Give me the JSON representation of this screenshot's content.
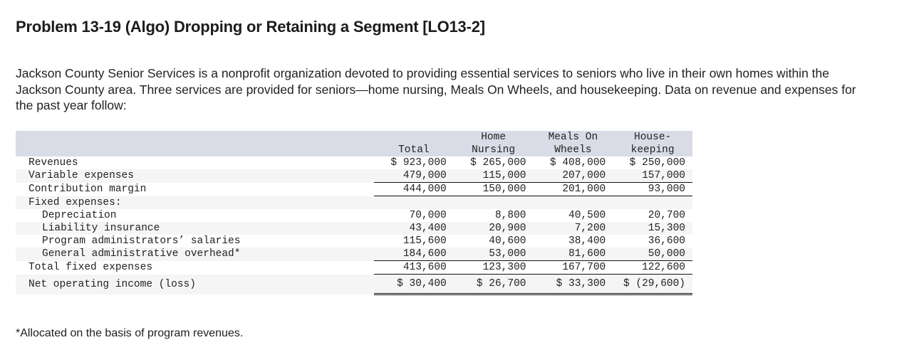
{
  "title": "Problem 13-19 (Algo) Dropping or Retaining a Segment [LO13-2]",
  "intro": "Jackson County Senior Services is a nonprofit organization devoted to providing essential services to seniors who live in their own homes within the Jackson County area. Three services are provided for seniors—home nursing, Meals On Wheels, and housekeeping. Data on revenue and expenses for the past year follow:",
  "table": {
    "headers": [
      {
        "line1": "",
        "line2": "Total"
      },
      {
        "line1": "Home",
        "line2": "Nursing"
      },
      {
        "line1": "Meals On",
        "line2": "Wheels"
      },
      {
        "line1": "House-",
        "line2": "keeping"
      }
    ],
    "rows": [
      {
        "label": "Revenues",
        "values": [
          "$ 923,000",
          "$ 265,000",
          "$ 408,000",
          "$ 250,000"
        ]
      },
      {
        "label": "Variable expenses",
        "values": [
          "479,000",
          "115,000",
          "207,000",
          "157,000"
        ]
      },
      {
        "label": "Contribution margin",
        "values": [
          "444,000",
          "150,000",
          "201,000",
          "93,000"
        ]
      },
      {
        "label": "Fixed expenses:",
        "values": [
          "",
          "",
          "",
          ""
        ]
      },
      {
        "label": "Depreciation",
        "values": [
          "70,000",
          "8,800",
          "40,500",
          "20,700"
        ]
      },
      {
        "label": "Liability insurance",
        "values": [
          "43,400",
          "20,900",
          "7,200",
          "15,300"
        ]
      },
      {
        "label": "Program administrators’ salaries",
        "values": [
          "115,600",
          "40,600",
          "38,400",
          "36,600"
        ]
      },
      {
        "label": "General administrative overhead*",
        "values": [
          "184,600",
          "53,000",
          "81,600",
          "50,000"
        ]
      },
      {
        "label": "Total fixed expenses",
        "values": [
          "413,600",
          "123,300",
          "167,700",
          "122,600"
        ]
      },
      {
        "label": "Net operating income (loss)",
        "values": [
          "$ 30,400",
          "$ 26,700",
          "$ 33,300",
          "$ (29,600)"
        ]
      }
    ]
  },
  "footnote": "*Allocated on the basis of program revenues."
}
